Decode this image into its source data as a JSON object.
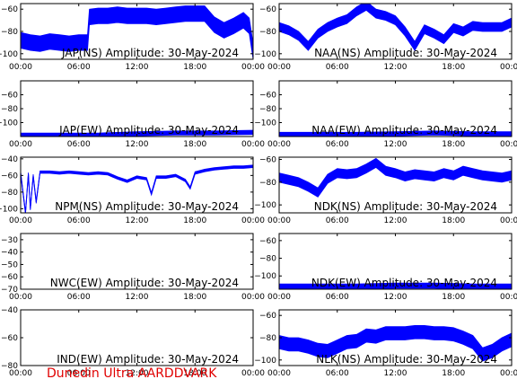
{
  "footer": "Dunedin Ultra AARDDVARK",
  "colors": {
    "trace": "#0000ff",
    "axis": "#000000",
    "footer": "#e00000",
    "background": "#ffffff"
  },
  "chart_data": [
    {
      "type": "line",
      "title": "JAP(NS) Amplitude: 30-May-2024",
      "x_ticks": [
        "00:00",
        "06:00",
        "12:00",
        "18:00",
        "00:00"
      ],
      "x": [
        0,
        1,
        2,
        3,
        4,
        5,
        6,
        6.9,
        7.1,
        8,
        9,
        10,
        11,
        12,
        13,
        14,
        15,
        16,
        17,
        18,
        19,
        20,
        21,
        22,
        23,
        23.6,
        24
      ],
      "y": [
        -88,
        -90,
        -91,
        -89,
        -90,
        -91,
        -90,
        -90,
        -67,
        -66,
        -66,
        -65,
        -66,
        -66,
        -66,
        -67,
        -66,
        -65,
        -64,
        -64,
        -64,
        -74,
        -79,
        -75,
        -70,
        -75,
        -98
      ],
      "ylim": [
        -105,
        -55
      ],
      "y_ticks": [
        -100,
        -80,
        -60
      ],
      "band": 7,
      "grid": false
    },
    {
      "type": "line",
      "title": "NAA(NS) Amplitude: 30-May-2024",
      "x_ticks": [
        "00:00",
        "06:00",
        "12:00",
        "18:00",
        "00:00"
      ],
      "x": [
        0,
        1,
        2,
        3,
        4,
        5,
        6,
        7,
        8,
        9,
        10,
        11,
        12,
        13,
        14,
        15,
        16,
        17,
        18,
        19,
        20,
        21,
        22,
        23,
        24
      ],
      "y": [
        -76,
        -79,
        -84,
        -93,
        -82,
        -76,
        -72,
        -69,
        -62,
        -57,
        -64,
        -66,
        -70,
        -80,
        -93,
        -78,
        -82,
        -87,
        -77,
        -80,
        -75,
        -76,
        -76,
        -76,
        -72
      ],
      "ylim": [
        -105,
        -55
      ],
      "y_ticks": [
        -100,
        -80,
        -60
      ],
      "band": 4,
      "grid": false
    },
    {
      "type": "line",
      "title": "JAP(EW) Amplitude: 30-May-2024",
      "x_ticks": [
        "00:00",
        "06:00",
        "12:00",
        "18:00",
        "00:00"
      ],
      "x": [
        0,
        4,
        8,
        12,
        16,
        20,
        24
      ],
      "y": [
        -118,
        -118,
        -118,
        -116,
        -115,
        -115,
        -114
      ],
      "ylim": [
        -120,
        -40
      ],
      "y_ticks": [
        -100,
        -80,
        -60
      ],
      "band": 3,
      "grid": false
    },
    {
      "type": "line",
      "title": "NAA(EW) Amplitude: 30-May-2024",
      "x_ticks": [
        "00:00",
        "06:00",
        "12:00",
        "18:00",
        "00:00"
      ],
      "x": [
        0,
        4,
        8,
        12,
        16,
        20,
        24
      ],
      "y": [
        -117,
        -117,
        -117,
        -116,
        -115,
        -116,
        -116
      ],
      "ylim": [
        -120,
        -40
      ],
      "y_ticks": [
        -100,
        -80,
        -60
      ],
      "band": 3,
      "grid": false
    },
    {
      "type": "line",
      "title": "NPM(NS) Amplitude: 30-May-2024",
      "x_ticks": [
        "00:00",
        "06:00",
        "12:00",
        "18:00",
        "00:00"
      ],
      "x": [
        0,
        0.5,
        0.8,
        1.0,
        1.3,
        1.6,
        2,
        3,
        4,
        5,
        6,
        7,
        8,
        9,
        10,
        11,
        12,
        13,
        13.5,
        14,
        15,
        16,
        17,
        17.5,
        18,
        19,
        20,
        21,
        22,
        23,
        24
      ],
      "y": [
        -57,
        -105,
        -58,
        -100,
        -60,
        -92,
        -56,
        -56,
        -57,
        -56,
        -57,
        -58,
        -57,
        -58,
        -63,
        -67,
        -62,
        -64,
        -82,
        -62,
        -62,
        -60,
        -66,
        -75,
        -57,
        -54,
        -52,
        -51,
        -50,
        -50,
        -49
      ],
      "ylim": [
        -105,
        -38
      ],
      "y_ticks": [
        -100,
        -80,
        -60,
        -40
      ],
      "band": 1.5,
      "grid": false
    },
    {
      "type": "line",
      "title": "NDK(NS) Amplitude: 30-May-2024",
      "x_ticks": [
        "00:00",
        "06:00",
        "12:00",
        "18:00",
        "00:00"
      ],
      "x": [
        0,
        1,
        2,
        3,
        4,
        5,
        6,
        7,
        8,
        9,
        10,
        11,
        12,
        13,
        14,
        15,
        16,
        17,
        18,
        19,
        20,
        21,
        22,
        23,
        24
      ],
      "y": [
        -76,
        -78,
        -80,
        -84,
        -89,
        -77,
        -72,
        -73,
        -72,
        -68,
        -63,
        -70,
        -72,
        -75,
        -73,
        -74,
        -75,
        -72,
        -74,
        -70,
        -72,
        -74,
        -75,
        -76,
        -74
      ],
      "ylim": [
        -107,
        -58
      ],
      "y_ticks": [
        -100,
        -80,
        -60
      ],
      "band": 4,
      "grid": false
    },
    {
      "type": "line",
      "title": "NWC(EW) Amplitude: 30-May-2024",
      "x": [],
      "y": [],
      "x_ticks": [
        "00:00",
        "06:00",
        "12:00",
        "18:00",
        "00:00"
      ],
      "ylim": [
        -70,
        -25
      ],
      "y_ticks": [
        -70,
        -60,
        -50,
        -40,
        -30
      ],
      "band": 0,
      "grid": false
    },
    {
      "type": "line",
      "title": "NDK(EW) Amplitude: 30-May-2024",
      "x_ticks": [
        "00:00",
        "06:00",
        "12:00",
        "18:00",
        "00:00"
      ],
      "x": [
        0,
        4,
        8,
        12,
        16,
        20,
        24
      ],
      "y": [
        -112,
        -112,
        -112,
        -111,
        -111,
        -112,
        -112
      ],
      "ylim": [
        -115,
        -52
      ],
      "y_ticks": [
        -100,
        -80,
        -60
      ],
      "band": 3,
      "grid": false
    },
    {
      "type": "line",
      "title": "IND(EW) Amplitude: 30-May-2024",
      "x": [],
      "y": [],
      "x_ticks": [
        "00:00",
        "06:00",
        "12:00",
        "18:00",
        "00:00"
      ],
      "ylim": [
        -80,
        -40
      ],
      "y_ticks": [
        -80,
        -60,
        -40
      ],
      "band": 0,
      "grid": false
    },
    {
      "type": "line",
      "title": "NLK(NS) Amplitude: 30-May-2024",
      "x_ticks": [
        "00:00",
        "06:00",
        "12:00",
        "18:00",
        "00:00"
      ],
      "x": [
        0,
        1,
        2,
        3,
        4,
        5,
        6,
        7,
        8,
        9,
        10,
        11,
        12,
        13,
        14,
        15,
        16,
        17,
        18,
        19,
        20,
        21,
        22,
        23,
        24
      ],
      "y": [
        -84,
        -86,
        -86,
        -88,
        -91,
        -92,
        -88,
        -84,
        -83,
        -78,
        -79,
        -76,
        -76,
        -76,
        -75,
        -75,
        -76,
        -76,
        -77,
        -80,
        -84,
        -95,
        -92,
        -86,
        -82
      ],
      "ylim": [
        -105,
        -55
      ],
      "y_ticks": [
        -100,
        -80,
        -60
      ],
      "band": 6,
      "grid": false
    }
  ]
}
